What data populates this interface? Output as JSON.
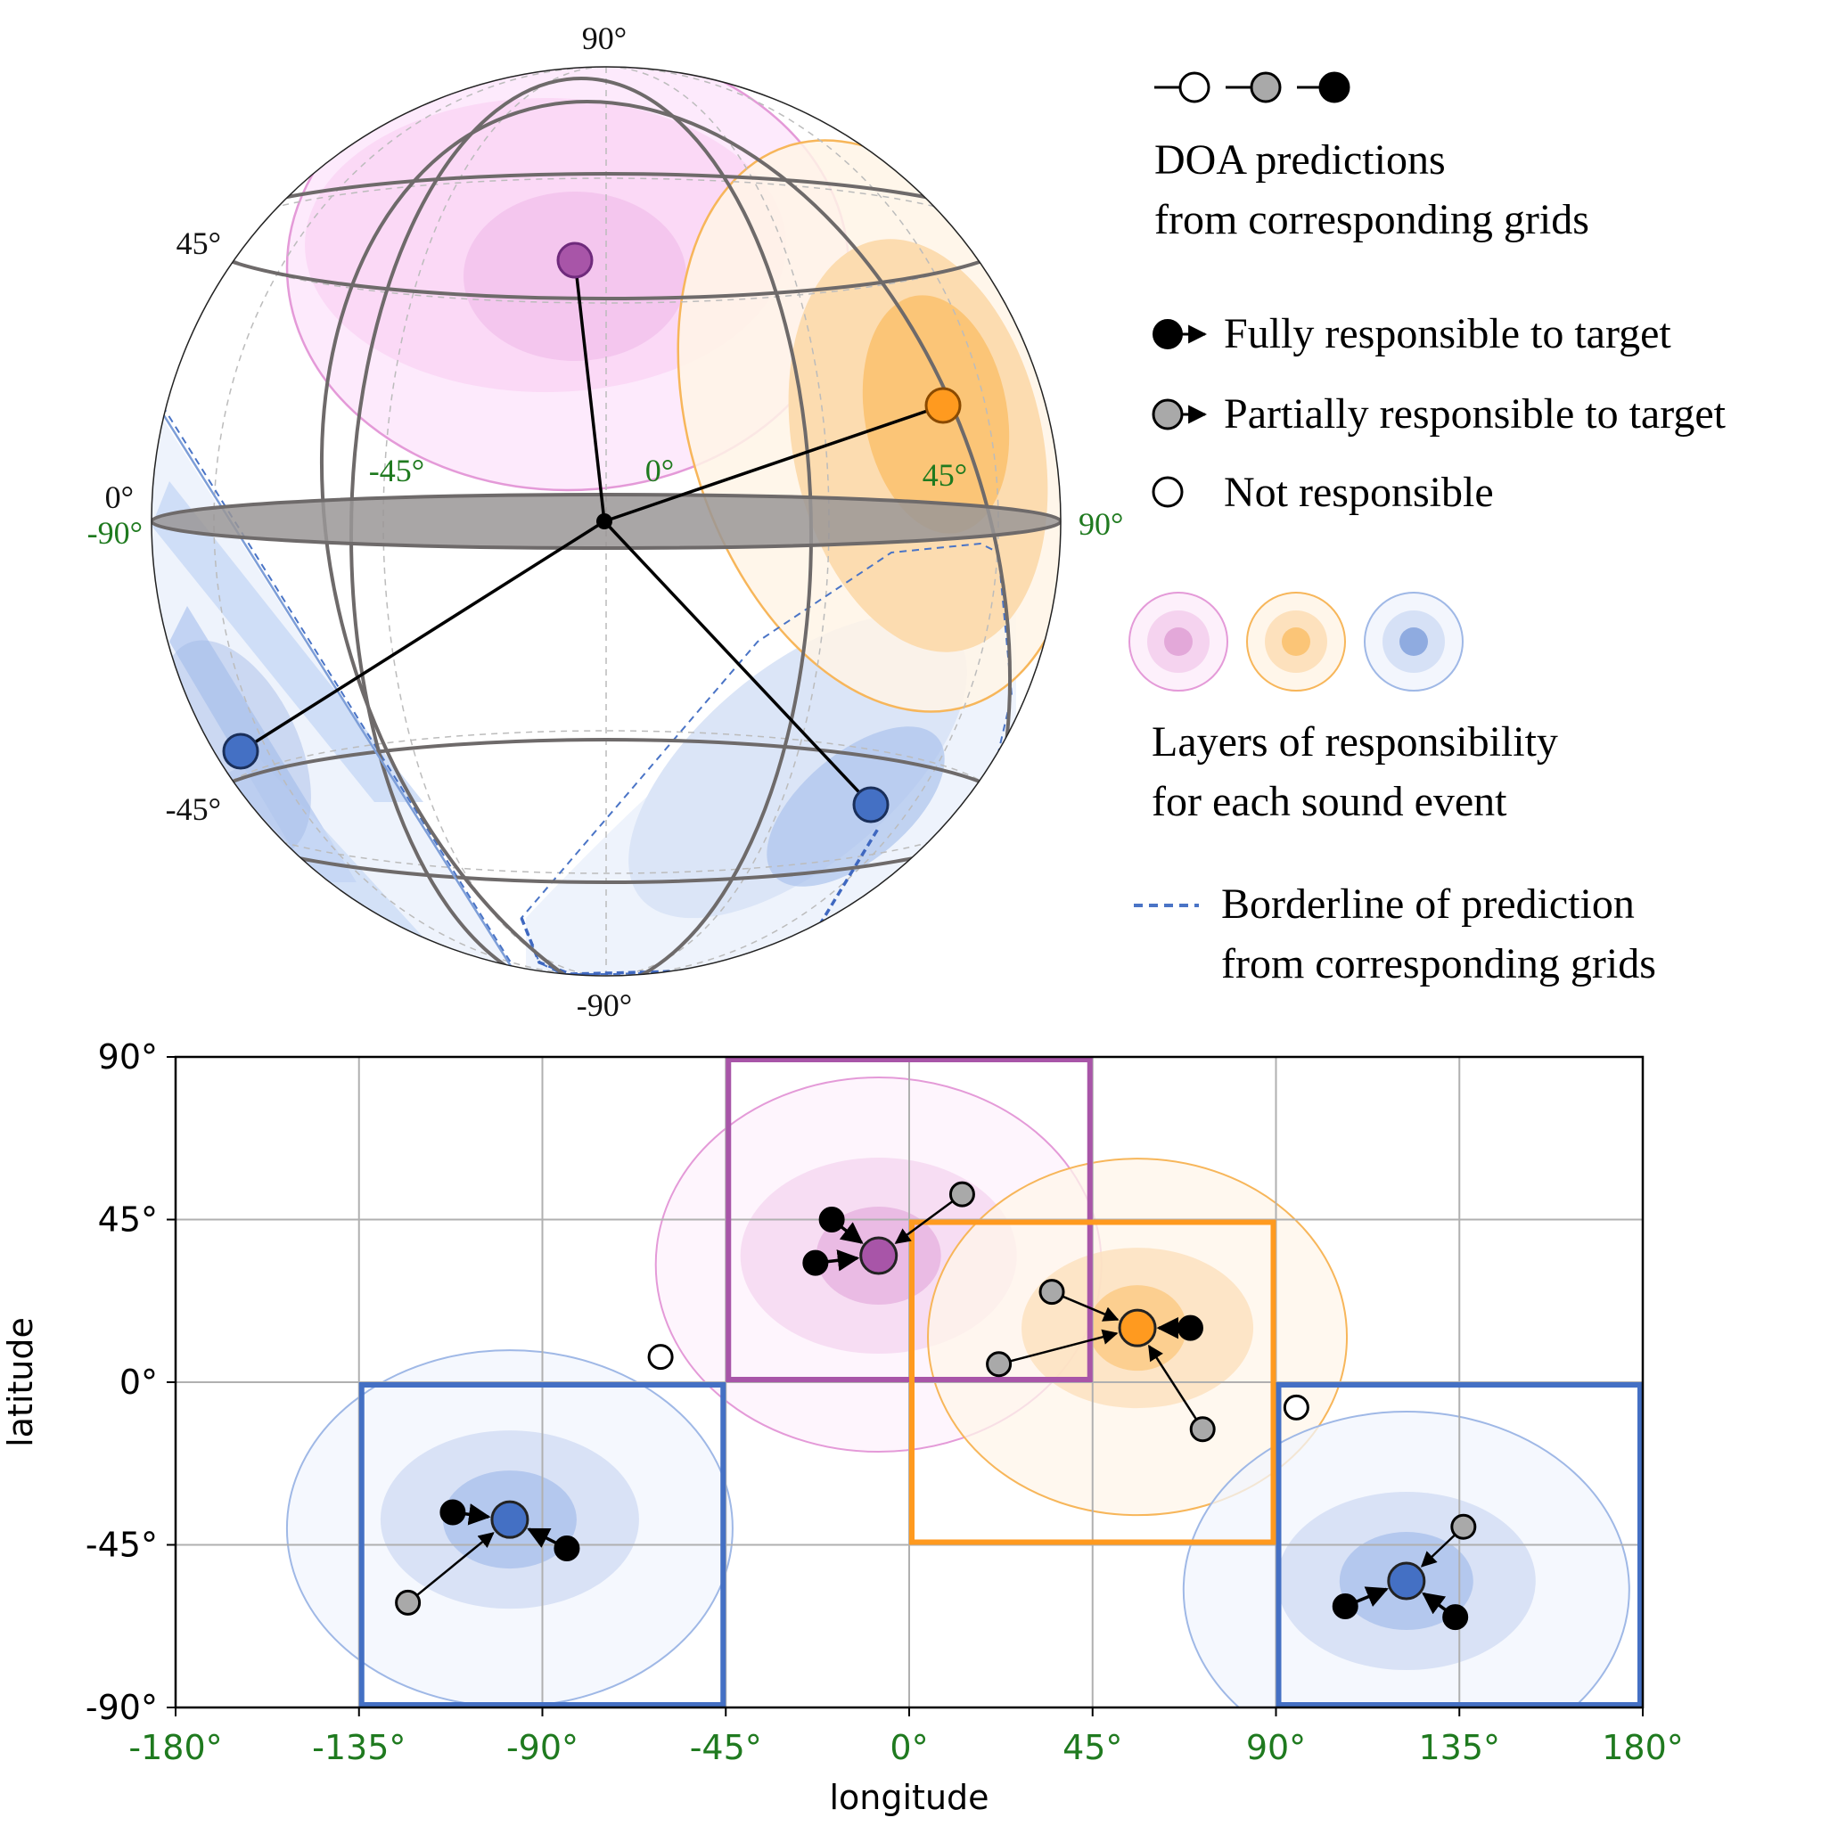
{
  "sphere": {
    "latitude_labels": [
      "90°",
      "45°",
      "0°",
      "-45°",
      "-90°"
    ],
    "longitude_labels": [
      "-90°",
      "-45°",
      "0°",
      "45°",
      "90°"
    ],
    "centers": [
      {
        "event": "purple",
        "lon": -7.5,
        "lat": 35
      },
      {
        "event": "orange",
        "lon": 52.5,
        "lat": 15
      },
      {
        "event": "blue",
        "lon": -97.5,
        "lat": -40
      },
      {
        "event": "blue",
        "lon": 120,
        "lat": -55
      }
    ]
  },
  "legend": {
    "doa_text_1": "DOA predictions",
    "doa_text_2": "from corresponding grids",
    "fully": "Fully responsible to target",
    "partially": "Partially responsible to target",
    "not": "Not responsible",
    "layers_text_1": "Layers of responsibility",
    "layers_text_2": "for each sound event",
    "border_text_1": "Borderline of prediction",
    "border_text_2": "from corresponding grids"
  },
  "colors": {
    "purple": "#a855a8",
    "orange": "#ff9a1f",
    "blue": "#4470c4",
    "gray": "#a9a9a9",
    "green_label": "#1f7a1f"
  },
  "chart_data": {
    "type": "scatter",
    "xlabel": "longitude",
    "ylabel": "latitude",
    "xlim": [
      -180,
      180
    ],
    "ylim": [
      -90,
      90
    ],
    "xticks": [
      -180,
      -135,
      -90,
      -45,
      0,
      45,
      90,
      135,
      180
    ],
    "yticks": [
      -90,
      -45,
      0,
      45,
      90
    ],
    "xtick_labels": [
      "-180°",
      "-135°",
      "-90°",
      "-45°",
      "0°",
      "45°",
      "90°",
      "135°",
      "180°"
    ],
    "ytick_labels": [
      "-90°",
      "-45°",
      "0°",
      "45°",
      "90°"
    ],
    "grid": true,
    "regions": [
      {
        "event": "purple",
        "lon": [
          -45,
          45
        ],
        "lat": [
          0,
          90
        ]
      },
      {
        "event": "orange",
        "lon": [
          0,
          90
        ],
        "lat": [
          -45,
          45
        ]
      },
      {
        "event": "blue",
        "lon": [
          -135,
          -45
        ],
        "lat": [
          -90,
          0
        ]
      },
      {
        "event": "blue",
        "lon": [
          90,
          180
        ],
        "lat": [
          -90,
          0
        ]
      }
    ],
    "targets": [
      {
        "event": "purple",
        "lon": -7.5,
        "lat": 35
      },
      {
        "event": "orange",
        "lon": 56,
        "lat": 15
      },
      {
        "event": "blue",
        "lon": -98,
        "lat": -38
      },
      {
        "event": "blue",
        "lon": 122,
        "lat": -55
      }
    ],
    "predictions": [
      {
        "type": "full",
        "lon": -19,
        "lat": 45,
        "target": 0
      },
      {
        "type": "full",
        "lon": -23,
        "lat": 33,
        "target": 0
      },
      {
        "type": "partial",
        "lon": 13,
        "lat": 52,
        "target": 0
      },
      {
        "type": "partial",
        "lon": 35,
        "lat": 25,
        "target": 1
      },
      {
        "type": "partial",
        "lon": 22,
        "lat": 5,
        "target": 1
      },
      {
        "type": "full",
        "lon": 69,
        "lat": 15,
        "target": 1
      },
      {
        "type": "partial",
        "lon": 72,
        "lat": -13,
        "target": 1
      },
      {
        "type": "full",
        "lon": -112,
        "lat": -36,
        "target": 2
      },
      {
        "type": "full",
        "lon": -84,
        "lat": -46,
        "target": 2
      },
      {
        "type": "partial",
        "lon": -123,
        "lat": -61,
        "target": 2
      },
      {
        "type": "none",
        "lon": -61,
        "lat": 7
      },
      {
        "type": "none",
        "lon": 95,
        "lat": -7
      },
      {
        "type": "partial",
        "lon": 136,
        "lat": -40,
        "target": 3
      },
      {
        "type": "full",
        "lon": 107,
        "lat": -62,
        "target": 3
      },
      {
        "type": "full",
        "lon": 134,
        "lat": -65,
        "target": 3
      }
    ]
  }
}
